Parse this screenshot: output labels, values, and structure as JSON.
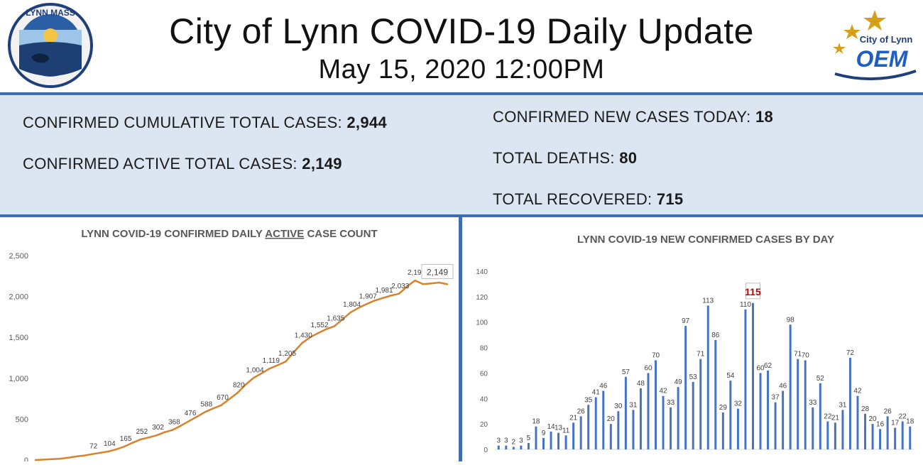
{
  "header": {
    "title": "City of Lynn COVID-19 Daily Update",
    "subtitle": "May 15, 2020 12:00PM",
    "left_logo_text": "LYNN MASS",
    "right_logo_text": "City of Lynn",
    "right_logo_abbr": "OEM"
  },
  "stats": {
    "cumulative_label": "CONFIRMED CUMULATIVE TOTAL CASES:",
    "cumulative_value": "2,944",
    "active_label": "CONFIRMED ACTIVE TOTAL CASES:",
    "active_value": "2,149",
    "new_label": "CONFIRMED NEW CASES TODAY:",
    "new_value": "18",
    "deaths_label": "TOTAL DEATHS:",
    "deaths_value": "80",
    "recovered_label": "TOTAL RECOVERED:",
    "recovered_value": "715"
  },
  "colors": {
    "accent_blue": "#3f6db3",
    "stats_bg": "#dce6f2",
    "line_orange": "#d9822b",
    "bar_blue": "#4472c4",
    "highlight_red": "#c00000"
  },
  "chart_data": [
    {
      "type": "line",
      "title_prefix": "LYNN COVID-19 CONFIRMED DAILY ",
      "title_emph": "ACTIVE",
      "title_suffix": " CASE COUNT",
      "ylim": [
        0,
        2500
      ],
      "yticks": [
        "0",
        "500",
        "1,000",
        "1,500",
        "2,000",
        "2,500"
      ],
      "grid": false,
      "values": [
        0,
        5,
        10,
        16,
        28,
        43,
        55,
        72,
        88,
        104,
        130,
        165,
        210,
        252,
        275,
        302,
        340,
        368,
        420,
        476,
        530,
        588,
        630,
        670,
        745,
        820,
        920,
        1004,
        1060,
        1119,
        1160,
        1205,
        1320,
        1430,
        1500,
        1552,
        1600,
        1635,
        1720,
        1804,
        1860,
        1907,
        1950,
        1981,
        2010,
        2033,
        2120,
        2195,
        2150,
        2160,
        2170,
        2149
      ],
      "data_labels": [
        {
          "i": 7,
          "text": "72"
        },
        {
          "i": 9,
          "text": "104"
        },
        {
          "i": 11,
          "text": "165"
        },
        {
          "i": 13,
          "text": "252"
        },
        {
          "i": 15,
          "text": "302"
        },
        {
          "i": 17,
          "text": "368"
        },
        {
          "i": 19,
          "text": "476"
        },
        {
          "i": 21,
          "text": "588"
        },
        {
          "i": 23,
          "text": "670"
        },
        {
          "i": 25,
          "text": "820"
        },
        {
          "i": 27,
          "text": "1,004"
        },
        {
          "i": 29,
          "text": "1,119"
        },
        {
          "i": 31,
          "text": "1,205"
        },
        {
          "i": 33,
          "text": "1,430"
        },
        {
          "i": 35,
          "text": "1,552"
        },
        {
          "i": 37,
          "text": "1,635"
        },
        {
          "i": 39,
          "text": "1,804"
        },
        {
          "i": 41,
          "text": "1,907"
        },
        {
          "i": 43,
          "text": "1,981"
        },
        {
          "i": 45,
          "text": "2,033"
        },
        {
          "i": 47,
          "text": "2,195"
        }
      ],
      "last_label": "2,149"
    },
    {
      "type": "bar",
      "title": "LYNN COVID-19 NEW CONFIRMED CASES BY DAY",
      "ylim": [
        0,
        140
      ],
      "yticks": [
        "0",
        "20",
        "40",
        "60",
        "80",
        "100",
        "120",
        "140"
      ],
      "grid": false,
      "values": [
        3,
        3,
        2,
        3,
        5,
        18,
        9,
        14,
        13,
        11,
        21,
        26,
        35,
        41,
        46,
        20,
        30,
        57,
        31,
        48,
        60,
        70,
        42,
        33,
        49,
        97,
        53,
        71,
        113,
        86,
        29,
        54,
        32,
        110,
        115,
        60,
        62,
        37,
        46,
        98,
        71,
        70,
        33,
        52,
        22,
        21,
        31,
        72,
        42,
        28,
        20,
        16,
        26,
        17,
        22,
        18
      ],
      "highlight_index": 34
    }
  ]
}
